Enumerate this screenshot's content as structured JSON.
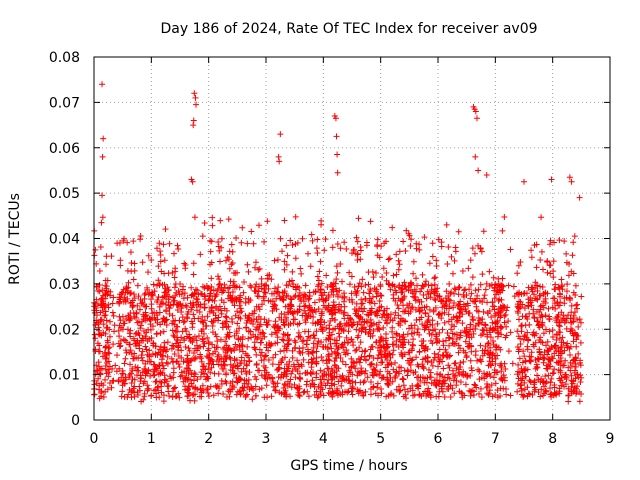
{
  "chart_data": {
    "type": "scatter",
    "title": "Day 186 of 2024, Rate Of TEC Index for receiver av09",
    "xlabel": "GPS time / hours",
    "ylabel": "ROTI / TECUs",
    "xlim": [
      0,
      9
    ],
    "ylim": [
      0,
      0.08
    ],
    "grid": true,
    "marker": "+",
    "color": "#ff0000",
    "x_ticks": [
      0,
      1,
      2,
      3,
      4,
      5,
      6,
      7,
      8,
      9
    ],
    "x_tick_labels": [
      "0",
      "1",
      "2",
      "3",
      "4",
      "5",
      "6",
      "7",
      "8",
      "9"
    ],
    "y_ticks": [
      0,
      0.01,
      0.02,
      0.03,
      0.04,
      0.05,
      0.06,
      0.07,
      0.08
    ],
    "y_tick_labels": [
      "0",
      "0.01",
      "0.02",
      "0.03",
      "0.04",
      "0.05",
      "0.06",
      "0.07",
      "0.08"
    ],
    "data_extent_hours": [
      0.0,
      8.5
    ],
    "bulk_range": [
      0.005,
      0.03
    ],
    "outliers": [
      {
        "x": 0.14,
        "y": 0.074
      },
      {
        "x": 0.16,
        "y": 0.062
      },
      {
        "x": 0.15,
        "y": 0.058
      },
      {
        "x": 0.14,
        "y": 0.0495
      },
      {
        "x": 0.13,
        "y": 0.0435
      },
      {
        "x": 1.75,
        "y": 0.072
      },
      {
        "x": 1.77,
        "y": 0.071
      },
      {
        "x": 1.78,
        "y": 0.0695
      },
      {
        "x": 1.74,
        "y": 0.066
      },
      {
        "x": 1.73,
        "y": 0.065
      },
      {
        "x": 1.7,
        "y": 0.053
      },
      {
        "x": 1.72,
        "y": 0.0525
      },
      {
        "x": 3.25,
        "y": 0.063
      },
      {
        "x": 3.22,
        "y": 0.058
      },
      {
        "x": 3.23,
        "y": 0.057
      },
      {
        "x": 4.2,
        "y": 0.067
      },
      {
        "x": 4.22,
        "y": 0.0665
      },
      {
        "x": 4.23,
        "y": 0.0625
      },
      {
        "x": 4.24,
        "y": 0.0585
      },
      {
        "x": 4.25,
        "y": 0.0545
      },
      {
        "x": 6.62,
        "y": 0.069
      },
      {
        "x": 6.64,
        "y": 0.0685
      },
      {
        "x": 6.66,
        "y": 0.068
      },
      {
        "x": 6.68,
        "y": 0.0665
      },
      {
        "x": 6.65,
        "y": 0.058
      },
      {
        "x": 6.7,
        "y": 0.055
      },
      {
        "x": 6.85,
        "y": 0.054
      },
      {
        "x": 7.5,
        "y": 0.0525
      },
      {
        "x": 7.98,
        "y": 0.053
      },
      {
        "x": 8.3,
        "y": 0.0535
      },
      {
        "x": 8.33,
        "y": 0.0525
      },
      {
        "x": 8.47,
        "y": 0.049
      }
    ]
  }
}
